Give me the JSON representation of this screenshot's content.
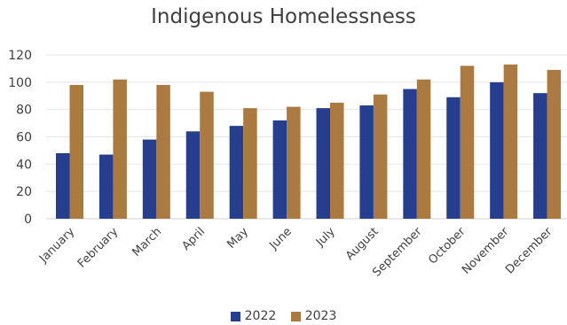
{
  "chart_data": {
    "type": "bar",
    "title": "Indigenous Homelessness",
    "categories": [
      "January",
      "February",
      "March",
      "April",
      "May",
      "June",
      "July",
      "August",
      "September",
      "October",
      "November",
      "December"
    ],
    "series": [
      {
        "name": "2022",
        "color": "#253f8e",
        "values": [
          48,
          47,
          58,
          64,
          68,
          72,
          81,
          83,
          95,
          89,
          100,
          92
        ]
      },
      {
        "name": "2023",
        "color": "#ab7a40",
        "values": [
          98,
          102,
          98,
          93,
          81,
          82,
          85,
          91,
          102,
          112,
          113,
          109
        ]
      }
    ],
    "ylim": [
      0,
      120
    ],
    "yticks": [
      "0",
      "20",
      "40",
      "60",
      "80",
      "100",
      "120"
    ],
    "grid": true,
    "legend_position": "bottom",
    "xlabel": "",
    "ylabel": ""
  }
}
